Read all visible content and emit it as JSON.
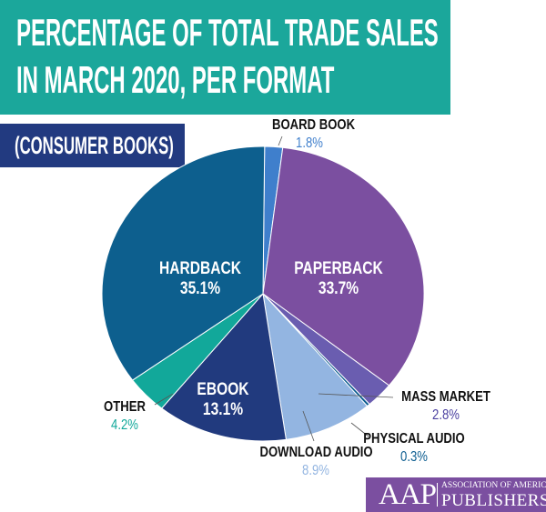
{
  "chart_data": {
    "type": "pie",
    "title": "PERCENTAGE OF TOTAL TRADE SALES IN MARCH 2020, PER FORMAT",
    "subtitle": "(CONSUMER BOOKS)",
    "slices": [
      {
        "label": "BOARD BOOK",
        "value": 1.8,
        "display": "1.8%",
        "color": "#3f7fcc"
      },
      {
        "label": "PAPERBACK",
        "value": 33.7,
        "display": "33.7%",
        "color": "#7b4fa0"
      },
      {
        "label": "MASS MARKET",
        "value": 2.8,
        "display": "2.8%",
        "color": "#6a5db0"
      },
      {
        "label": "PHYSICAL AUDIO",
        "value": 0.3,
        "display": "0.3%",
        "color": "#0b5c8f"
      },
      {
        "label": "DOWNLOAD AUDIO",
        "value": 8.9,
        "display": "8.9%",
        "color": "#93b5e1"
      },
      {
        "label": "EBOOK",
        "value": 13.1,
        "display": "13.1%",
        "color": "#213a7e"
      },
      {
        "label": "OTHER",
        "value": 4.2,
        "display": "4.2%",
        "color": "#12a89a"
      },
      {
        "label": "HARDBACK",
        "value": 35.1,
        "display": "35.1%",
        "color": "#0d5f8e"
      }
    ]
  },
  "logo": {
    "abbr": "AAP",
    "line1": "ASSOCIATION OF AMERICAN",
    "line2": "PUBLISHERS"
  }
}
